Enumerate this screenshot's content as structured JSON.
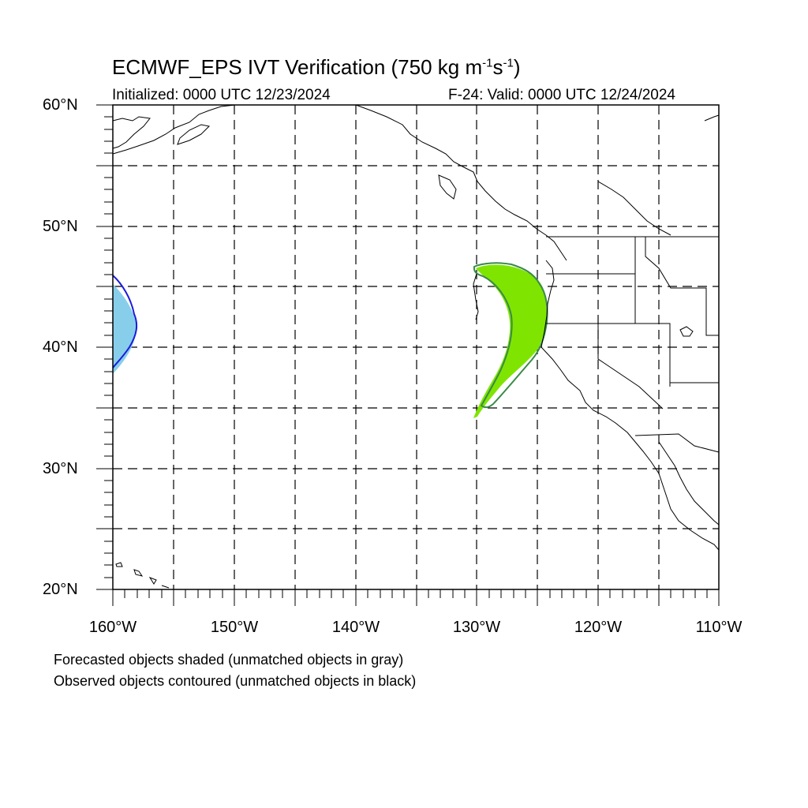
{
  "title": {
    "main": "ECMWF_EPS IVT Verification (750 kg m",
    "sup1": "-1",
    "mid": "s",
    "sup2": "-1",
    "end": ")"
  },
  "initialized": "Initialized: 0000 UTC 12/23/2024",
  "valid": "F-24: Valid: 0000 UTC 12/24/2024",
  "latitude_labels": [
    "60°N",
    "50°N",
    "40°N",
    "30°N",
    "20°N"
  ],
  "longitude_labels": [
    "160°W",
    "150°W",
    "140°W",
    "130°W",
    "120°W",
    "110°W"
  ],
  "legend_notes": [
    "Forecasted objects shaded (unmatched objects in gray)",
    "Observed objects contoured (unmatched objects in black)"
  ],
  "colors": {
    "forecast_object_west": "#87ceeb",
    "observed_contour_west": "#1a1adb",
    "forecast_object_coast": "#7fe500",
    "observed_contour_coast": "#3a8a4a",
    "coastline": "#000000",
    "gridline": "#000000"
  }
}
